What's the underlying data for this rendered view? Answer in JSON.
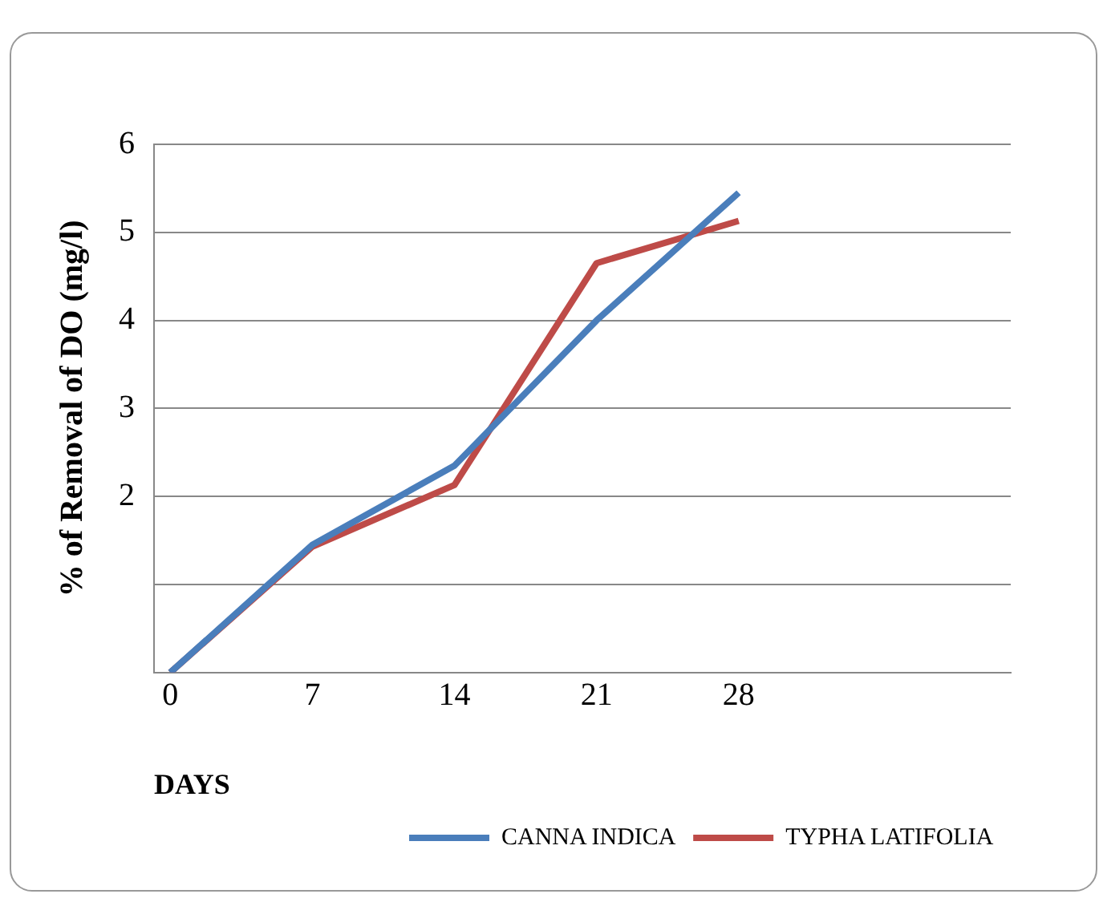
{
  "chart_data": {
    "type": "line",
    "xlabel": "DAYS",
    "ylabel": "% of Removal of DO (mg/l)",
    "x": [
      0,
      7,
      14,
      21,
      28
    ],
    "xlim": [
      -0.8,
      41.4
    ],
    "xticks": [
      0,
      7,
      14,
      21,
      28
    ],
    "ylim": [
      0,
      6
    ],
    "yticks": [
      {
        "value": 0,
        "label": null
      },
      {
        "value": 1,
        "label": null
      },
      2,
      3,
      4,
      5,
      6
    ],
    "grid": "y",
    "legend": "bottom right",
    "marker": "none",
    "line_style": "solid",
    "series": [
      {
        "name": "CANNA INDICA",
        "color": "#4a7ebb",
        "values": [
          0,
          1.45,
          2.35,
          4.0,
          5.45
        ]
      },
      {
        "name": "TYPHA LATIFOLIA",
        "color": "#be4b48",
        "values": [
          0,
          1.43,
          2.13,
          4.65,
          5.13
        ]
      }
    ]
  }
}
